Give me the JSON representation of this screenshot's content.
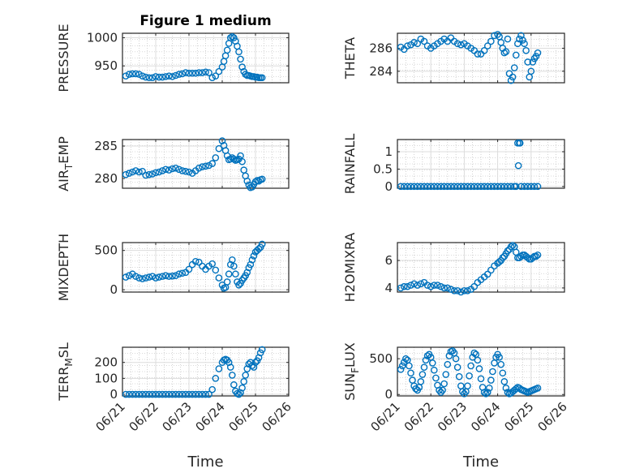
{
  "figure": {
    "title": "Figure 1 medium"
  },
  "colors": {
    "marker": "#0072BD",
    "axis": "#262626",
    "grid": "#b4b4b4"
  },
  "chart_data": [
    {
      "type": "scatter",
      "ylabel": "PRESSURE",
      "title": "Figure 1 medium",
      "xlim": [
        0,
        5
      ],
      "ylim": [
        920,
        1008
      ],
      "yticks": [
        950,
        1000
      ],
      "xticks": [
        0,
        1,
        2,
        3,
        4,
        5
      ],
      "xticklabels": [
        "06/21",
        "06/22",
        "06/23",
        "06/24",
        "06/25",
        "06/26"
      ],
      "xlabel": "",
      "x": [
        0.1,
        0.2,
        0.3,
        0.4,
        0.5,
        0.6,
        0.7,
        0.8,
        0.9,
        1.0,
        1.1,
        1.2,
        1.3,
        1.4,
        1.5,
        1.6,
        1.7,
        1.8,
        1.9,
        2.0,
        2.1,
        2.2,
        2.3,
        2.4,
        2.5,
        2.6,
        2.7,
        2.8,
        2.9,
        3.0,
        3.05,
        3.1,
        3.15,
        3.2,
        3.25,
        3.3,
        3.35,
        3.4,
        3.45,
        3.5,
        3.55,
        3.6,
        3.65,
        3.7,
        3.75,
        3.8,
        3.85,
        3.9,
        3.95,
        4.0,
        4.05,
        4.1,
        4.15,
        4.2
      ],
      "y": [
        932,
        935,
        936,
        936,
        935,
        932,
        930,
        929,
        929,
        931,
        930,
        930,
        931,
        932,
        931,
        933,
        935,
        936,
        938,
        937,
        937,
        937,
        938,
        938,
        939,
        938,
        929,
        932,
        940,
        948,
        958,
        968,
        978,
        990,
        1000,
        1002,
        1000,
        994,
        985,
        975,
        962,
        948,
        940,
        935,
        933,
        933,
        932,
        931,
        931,
        930,
        930,
        929,
        929,
        929
      ]
    },
    {
      "type": "scatter",
      "ylabel": "THETA",
      "xlim": [
        0,
        5
      ],
      "ylim": [
        283,
        287.3
      ],
      "yticks": [
        284,
        286
      ],
      "xticks": [
        0,
        1,
        2,
        3,
        4,
        5
      ],
      "xticklabels": [
        "06/21",
        "06/22",
        "06/23",
        "06/24",
        "06/25",
        "06/26"
      ],
      "xlabel": "",
      "x": [
        0.1,
        0.2,
        0.3,
        0.4,
        0.5,
        0.6,
        0.7,
        0.8,
        0.9,
        1.0,
        1.1,
        1.2,
        1.3,
        1.4,
        1.5,
        1.6,
        1.7,
        1.8,
        1.9,
        2.0,
        2.1,
        2.2,
        2.3,
        2.4,
        2.5,
        2.6,
        2.7,
        2.8,
        2.9,
        3.0,
        3.05,
        3.1,
        3.15,
        3.2,
        3.25,
        3.3,
        3.35,
        3.4,
        3.45,
        3.5,
        3.55,
        3.6,
        3.65,
        3.7,
        3.75,
        3.8,
        3.85,
        3.9,
        3.95,
        4.0,
        4.05,
        4.1,
        4.15,
        4.2
      ],
      "y": [
        286.1,
        285.9,
        286.2,
        286.3,
        286.5,
        286.4,
        286.8,
        286.6,
        286.2,
        286.0,
        286.2,
        286.4,
        286.6,
        286.8,
        286.6,
        286.9,
        286.6,
        286.4,
        286.3,
        286.4,
        286.2,
        286.0,
        285.8,
        285.5,
        285.5,
        285.8,
        286.2,
        286.6,
        287.1,
        287.2,
        287.0,
        286.5,
        286.0,
        285.6,
        285.7,
        286.8,
        283.8,
        283.2,
        283.5,
        284.3,
        285.4,
        286.4,
        286.8,
        287.1,
        286.7,
        286.4,
        285.8,
        284.8,
        283.5,
        284.0,
        284.8,
        285.1,
        285.3,
        285.6
      ]
    },
    {
      "type": "scatter",
      "ylabel": "AIR_TEMP",
      "xlim": [
        0,
        5
      ],
      "ylim": [
        278.5,
        286
      ],
      "yticks": [
        280,
        285
      ],
      "xticks": [
        0,
        1,
        2,
        3,
        4,
        5
      ],
      "xticklabels": [
        "06/21",
        "06/22",
        "06/23",
        "06/24",
        "06/25",
        "06/26"
      ],
      "xlabel": "",
      "x": [
        0.1,
        0.2,
        0.3,
        0.4,
        0.5,
        0.6,
        0.7,
        0.8,
        0.9,
        1.0,
        1.1,
        1.2,
        1.3,
        1.4,
        1.5,
        1.6,
        1.7,
        1.8,
        1.9,
        2.0,
        2.1,
        2.2,
        2.3,
        2.4,
        2.5,
        2.6,
        2.7,
        2.8,
        2.9,
        3.0,
        3.05,
        3.1,
        3.15,
        3.2,
        3.25,
        3.3,
        3.35,
        3.4,
        3.45,
        3.5,
        3.55,
        3.6,
        3.65,
        3.7,
        3.75,
        3.8,
        3.85,
        3.9,
        3.95,
        4.0,
        4.05,
        4.1,
        4.15,
        4.2
      ],
      "y": [
        280.6,
        280.8,
        281.0,
        281.2,
        281.0,
        281.1,
        280.5,
        280.6,
        280.7,
        280.9,
        281.0,
        281.2,
        281.4,
        281.3,
        281.5,
        281.6,
        281.4,
        281.2,
        281.1,
        281.0,
        280.8,
        281.2,
        281.6,
        281.8,
        281.9,
        282.0,
        282.3,
        283.2,
        284.6,
        285.8,
        285.1,
        284.3,
        283.5,
        282.9,
        283.0,
        283.2,
        283.0,
        282.8,
        282.9,
        283.0,
        283.5,
        282.6,
        281.3,
        280.4,
        279.6,
        279.0,
        278.6,
        278.7,
        279.1,
        279.5,
        279.7,
        279.6,
        279.8,
        279.9
      ]
    },
    {
      "type": "scatter",
      "ylabel": "RAINFALL",
      "xlim": [
        0,
        5
      ],
      "ylim": [
        -0.05,
        1.35
      ],
      "yticks": [
        0,
        0.5,
        1
      ],
      "yticklabels": [
        "0",
        "0.5",
        "1"
      ],
      "xticks": [
        0,
        1,
        2,
        3,
        4,
        5
      ],
      "xticklabels": [
        "06/21",
        "06/22",
        "06/23",
        "06/24",
        "06/25",
        "06/26"
      ],
      "xlabel": "",
      "x": [
        0.1,
        0.2,
        0.3,
        0.4,
        0.5,
        0.6,
        0.7,
        0.8,
        0.9,
        1.0,
        1.1,
        1.2,
        1.3,
        1.4,
        1.5,
        1.6,
        1.7,
        1.8,
        1.9,
        2.0,
        2.1,
        2.2,
        2.3,
        2.4,
        2.5,
        2.6,
        2.7,
        2.8,
        2.9,
        3.0,
        3.1,
        3.2,
        3.3,
        3.4,
        3.5,
        3.55,
        3.6,
        3.62,
        3.65,
        3.67,
        3.7,
        3.8,
        3.9,
        4.0,
        4.1,
        4.2
      ],
      "y": [
        0,
        0,
        0,
        0,
        0,
        0,
        0,
        0,
        0,
        0,
        0,
        0,
        0,
        0,
        0,
        0,
        0,
        0,
        0,
        0,
        0,
        0,
        0,
        0,
        0,
        0,
        0,
        0,
        0,
        0,
        0,
        0,
        0,
        0,
        0,
        0,
        1.25,
        0.6,
        1.25,
        1.25,
        0,
        0,
        0,
        0,
        0,
        0
      ]
    },
    {
      "type": "scatter",
      "ylabel": "MIXDEPTH",
      "xlim": [
        0,
        5
      ],
      "ylim": [
        -30,
        600
      ],
      "yticks": [
        0,
        500
      ],
      "xticks": [
        0,
        1,
        2,
        3,
        4,
        5
      ],
      "xticklabels": [
        "06/21",
        "06/22",
        "06/23",
        "06/24",
        "06/25",
        "06/26"
      ],
      "xlabel": "",
      "x": [
        0.1,
        0.2,
        0.3,
        0.4,
        0.5,
        0.6,
        0.7,
        0.8,
        0.9,
        1.0,
        1.1,
        1.2,
        1.3,
        1.4,
        1.5,
        1.6,
        1.7,
        1.8,
        1.9,
        2.0,
        2.1,
        2.2,
        2.3,
        2.4,
        2.5,
        2.6,
        2.7,
        2.8,
        2.9,
        3.0,
        3.05,
        3.1,
        3.15,
        3.2,
        3.25,
        3.3,
        3.35,
        3.4,
        3.45,
        3.5,
        3.55,
        3.6,
        3.65,
        3.7,
        3.75,
        3.8,
        3.85,
        3.9,
        3.95,
        4.0,
        4.05,
        4.1,
        4.15,
        4.2
      ],
      "y": [
        160,
        180,
        200,
        170,
        150,
        140,
        150,
        160,
        170,
        150,
        160,
        170,
        180,
        170,
        175,
        180,
        200,
        210,
        220,
        260,
        320,
        360,
        350,
        300,
        260,
        300,
        330,
        250,
        150,
        60,
        20,
        30,
        100,
        200,
        320,
        380,
        300,
        200,
        100,
        60,
        80,
        120,
        150,
        180,
        220,
        280,
        320,
        380,
        430,
        480,
        500,
        520,
        540,
        580
      ]
    },
    {
      "type": "scatter",
      "ylabel": "H2OMIXRA",
      "xlim": [
        0,
        5
      ],
      "ylim": [
        3.7,
        7.3
      ],
      "yticks": [
        4,
        6
      ],
      "xticks": [
        0,
        1,
        2,
        3,
        4,
        5
      ],
      "xticklabels": [
        "06/21",
        "06/22",
        "06/23",
        "06/24",
        "06/25",
        "06/26"
      ],
      "xlabel": "",
      "x": [
        0.1,
        0.2,
        0.3,
        0.4,
        0.5,
        0.6,
        0.7,
        0.8,
        0.9,
        1.0,
        1.1,
        1.2,
        1.3,
        1.4,
        1.5,
        1.6,
        1.7,
        1.8,
        1.9,
        2.0,
        2.1,
        2.2,
        2.3,
        2.4,
        2.5,
        2.6,
        2.7,
        2.8,
        2.9,
        3.0,
        3.05,
        3.1,
        3.15,
        3.2,
        3.25,
        3.3,
        3.35,
        3.4,
        3.45,
        3.5,
        3.55,
        3.6,
        3.65,
        3.7,
        3.75,
        3.8,
        3.85,
        3.9,
        3.95,
        4.0,
        4.05,
        4.1,
        4.15,
        4.2
      ],
      "y": [
        4.0,
        4.1,
        4.1,
        4.2,
        4.3,
        4.2,
        4.3,
        4.4,
        4.2,
        4.1,
        4.2,
        4.2,
        4.1,
        4.0,
        4.0,
        3.9,
        3.8,
        3.8,
        3.7,
        3.8,
        3.8,
        3.9,
        4.1,
        4.4,
        4.6,
        4.8,
        5.0,
        5.3,
        5.6,
        5.8,
        5.9,
        6.0,
        6.2,
        6.3,
        6.5,
        6.7,
        6.8,
        7.0,
        7.1,
        7.0,
        6.6,
        6.2,
        6.2,
        6.3,
        6.4,
        6.4,
        6.3,
        6.2,
        6.1,
        6.1,
        6.2,
        6.3,
        6.3,
        6.4
      ]
    },
    {
      "type": "scatter",
      "ylabel": "TERR_MSL",
      "xlim": [
        0,
        5
      ],
      "ylim": [
        -10,
        295
      ],
      "yticks": [
        0,
        100,
        200
      ],
      "xticks": [
        0,
        1,
        2,
        3,
        4,
        5
      ],
      "xticklabels": [
        "06/21",
        "06/22",
        "06/23",
        "06/24",
        "06/25",
        "06/26"
      ],
      "xlabel": "Time",
      "x": [
        0.1,
        0.2,
        0.3,
        0.4,
        0.5,
        0.6,
        0.7,
        0.8,
        0.9,
        1.0,
        1.1,
        1.2,
        1.3,
        1.4,
        1.5,
        1.6,
        1.7,
        1.8,
        1.9,
        2.0,
        2.1,
        2.2,
        2.3,
        2.4,
        2.5,
        2.6,
        2.7,
        2.8,
        2.9,
        3.0,
        3.05,
        3.1,
        3.15,
        3.2,
        3.25,
        3.3,
        3.35,
        3.4,
        3.45,
        3.5,
        3.55,
        3.6,
        3.65,
        3.7,
        3.75,
        3.8,
        3.85,
        3.9,
        3.95,
        4.0,
        4.05,
        4.1,
        4.15,
        4.2
      ],
      "y": [
        0,
        0,
        0,
        0,
        0,
        0,
        0,
        0,
        0,
        0,
        0,
        0,
        0,
        0,
        0,
        0,
        0,
        0,
        0,
        0,
        0,
        0,
        0,
        0,
        0,
        0,
        30,
        100,
        160,
        200,
        215,
        220,
        215,
        200,
        170,
        120,
        60,
        20,
        5,
        0,
        10,
        40,
        80,
        120,
        160,
        190,
        200,
        180,
        170,
        200,
        210,
        230,
        260,
        280
      ]
    },
    {
      "type": "scatter",
      "ylabel": "SUN_FLUX",
      "xlim": [
        0,
        5
      ],
      "ylim": [
        -20,
        660
      ],
      "yticks": [
        0,
        500
      ],
      "xticks": [
        0,
        1,
        2,
        3,
        4,
        5
      ],
      "xticklabels": [
        "06/21",
        "06/22",
        "06/23",
        "06/24",
        "06/25",
        "06/26"
      ],
      "xlabel": "Time",
      "x": [
        0.1,
        0.15,
        0.2,
        0.25,
        0.3,
        0.35,
        0.4,
        0.45,
        0.5,
        0.55,
        0.6,
        0.65,
        0.7,
        0.75,
        0.8,
        0.85,
        0.9,
        0.95,
        1.0,
        1.05,
        1.1,
        1.15,
        1.2,
        1.25,
        1.3,
        1.35,
        1.4,
        1.45,
        1.5,
        1.55,
        1.6,
        1.65,
        1.7,
        1.75,
        1.8,
        1.85,
        1.9,
        1.95,
        2.0,
        2.05,
        2.1,
        2.15,
        2.2,
        2.25,
        2.3,
        2.35,
        2.4,
        2.45,
        2.5,
        2.55,
        2.6,
        2.65,
        2.7,
        2.75,
        2.8,
        2.85,
        2.9,
        2.95,
        3.0,
        3.05,
        3.1,
        3.15,
        3.2,
        3.25,
        3.3,
        3.35,
        3.4,
        3.45,
        3.5,
        3.55,
        3.6,
        3.65,
        3.7,
        3.75,
        3.8,
        3.85,
        3.9,
        3.95,
        4.0,
        4.05,
        4.1,
        4.15,
        4.2
      ],
      "y": [
        350,
        400,
        450,
        500,
        480,
        400,
        300,
        200,
        120,
        80,
        60,
        100,
        180,
        280,
        380,
        480,
        540,
        560,
        520,
        440,
        340,
        230,
        130,
        60,
        30,
        60,
        150,
        280,
        420,
        540,
        600,
        610,
        580,
        500,
        380,
        250,
        120,
        40,
        10,
        40,
        120,
        260,
        400,
        520,
        580,
        560,
        480,
        360,
        220,
        100,
        30,
        10,
        30,
        90,
        200,
        320,
        440,
        520,
        560,
        520,
        420,
        300,
        180,
        90,
        30,
        10,
        20,
        40,
        60,
        80,
        100,
        90,
        70,
        60,
        50,
        40,
        30,
        40,
        50,
        60,
        70,
        80,
        90
      ]
    }
  ]
}
